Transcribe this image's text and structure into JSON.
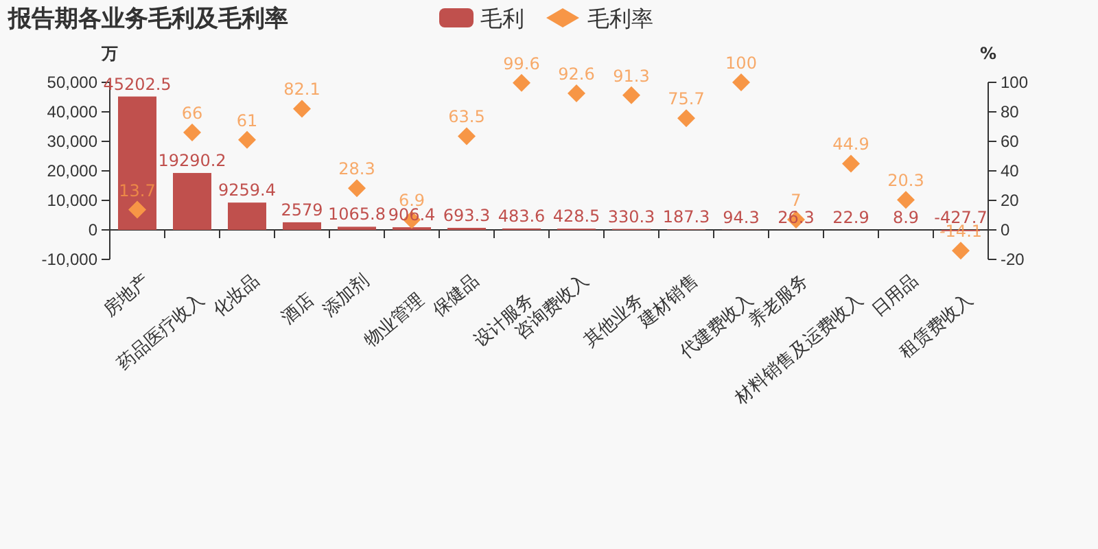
{
  "chart_data": {
    "type": "bar",
    "title": "报告期各业务毛利及毛利率",
    "ylabel": "万",
    "y2label": "%",
    "categories": [
      "房地产",
      "药品医疗收入",
      "化妆品",
      "酒店",
      "添加剂",
      "物业管理",
      "保健品",
      "设计服务",
      "咨询费收入",
      "其他业务",
      "建材销售",
      "代建费收入",
      "养老服务",
      "材料销售及运费收入",
      "日用品",
      "租赁费收入"
    ],
    "series": [
      {
        "name": "毛利",
        "color": "#c0504d",
        "values": [
          45202.5,
          19290.2,
          9259.4,
          2579,
          1065.8,
          906.4,
          693.3,
          483.6,
          428.5,
          330.3,
          187.3,
          94.3,
          26.3,
          22.9,
          8.9,
          -427.7
        ]
      },
      {
        "name": "毛利率",
        "type": "scatter",
        "axis": "y2",
        "marker": "diamond",
        "color": "#f79646",
        "values": [
          13.7,
          66,
          61,
          82.1,
          28.3,
          6.9,
          63.5,
          99.6,
          92.6,
          91.3,
          75.7,
          100,
          7,
          44.9,
          20.3,
          -14.1
        ]
      }
    ],
    "ylim": [
      -10000,
      50000
    ],
    "yticks": [
      {
        "value": -10000,
        "label": "-10,000"
      },
      0,
      {
        "value": 10000,
        "label": "10,000"
      },
      {
        "value": 20000,
        "label": "20,000"
      },
      {
        "value": 30000,
        "label": "30,000"
      },
      {
        "value": 40000,
        "label": "40,000"
      },
      {
        "value": 50000,
        "label": "50,000"
      }
    ],
    "y2lim": [
      -20,
      100
    ],
    "y2ticks": [
      -20,
      0,
      20,
      40,
      60,
      80,
      100
    ],
    "data_labels": true,
    "legend": "top"
  }
}
